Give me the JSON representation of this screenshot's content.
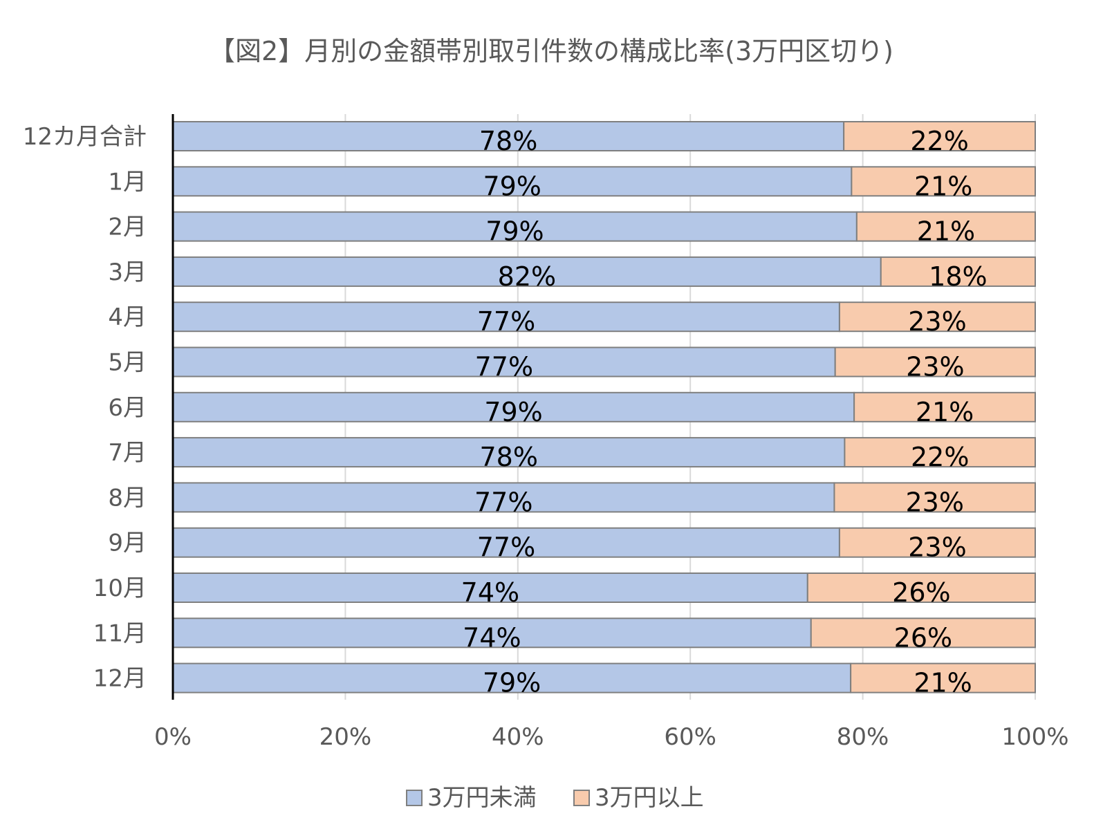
{
  "chart_data": {
    "type": "bar",
    "orientation": "horizontal",
    "stacked": "percent",
    "title": "【図2】月別の金額帯別取引件数の構成比率(3万円区切り)",
    "categories": [
      "12カ月合計",
      "1月",
      "2月",
      "3月",
      "4月",
      "5月",
      "6月",
      "7月",
      "8月",
      "9月",
      "10月",
      "11月",
      "12月"
    ],
    "series": [
      {
        "name": "3万円未満",
        "color": "#b4c7e7",
        "values": [
          77.8,
          78.7,
          79.3,
          82.1,
          77.3,
          76.8,
          79.0,
          77.9,
          76.7,
          77.3,
          73.6,
          74.0,
          78.6
        ],
        "labels": [
          "78%",
          "79%",
          "79%",
          "82%",
          "77%",
          "77%",
          "79%",
          "78%",
          "77%",
          "77%",
          "74%",
          "74%",
          "79%"
        ]
      },
      {
        "name": "3万円以上",
        "color": "#f8cbad",
        "values": [
          22.2,
          21.3,
          20.7,
          17.9,
          22.7,
          23.2,
          21.0,
          22.1,
          23.3,
          22.7,
          26.4,
          26.0,
          21.4
        ],
        "labels": [
          "22%",
          "21%",
          "21%",
          "18%",
          "23%",
          "23%",
          "21%",
          "22%",
          "23%",
          "23%",
          "26%",
          "26%",
          "21%"
        ]
      }
    ],
    "xlim": [
      0,
      100
    ],
    "xticks": [
      "0%",
      "20%",
      "40%",
      "60%",
      "80%",
      "100%"
    ],
    "grid": true,
    "legend_position": "bottom"
  }
}
